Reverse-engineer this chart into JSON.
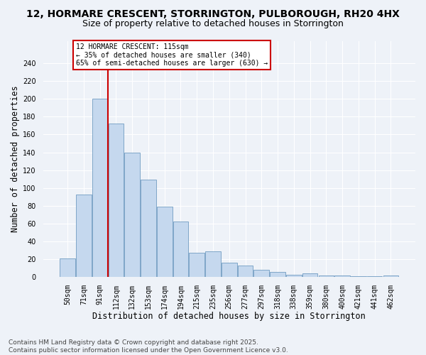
{
  "title1": "12, HORMARE CRESCENT, STORRINGTON, PULBOROUGH, RH20 4HX",
  "title2": "Size of property relative to detached houses in Storrington",
  "xlabel": "Distribution of detached houses by size in Storrington",
  "ylabel": "Number of detached properties",
  "categories": [
    "50sqm",
    "71sqm",
    "91sqm",
    "112sqm",
    "132sqm",
    "153sqm",
    "174sqm",
    "194sqm",
    "215sqm",
    "235sqm",
    "256sqm",
    "277sqm",
    "297sqm",
    "318sqm",
    "338sqm",
    "359sqm",
    "380sqm",
    "400sqm",
    "421sqm",
    "441sqm",
    "462sqm"
  ],
  "values": [
    21,
    93,
    200,
    172,
    140,
    109,
    79,
    62,
    27,
    29,
    16,
    13,
    8,
    6,
    3,
    4,
    2,
    2,
    1,
    1,
    2
  ],
  "bar_color": "#c5d8ee",
  "bar_edge_color": "#5b8db8",
  "red_line_index": 2.5,
  "red_line_label": "12 HORMARE CRESCENT: 115sqm",
  "annotation_line1": "← 35% of detached houses are smaller (340)",
  "annotation_line2": "65% of semi-detached houses are larger (630) →",
  "annotation_box_color": "#ffffff",
  "annotation_box_edge": "#cc0000",
  "red_line_color": "#cc0000",
  "ylim": [
    0,
    265
  ],
  "yticks": [
    0,
    20,
    40,
    60,
    80,
    100,
    120,
    140,
    160,
    180,
    200,
    220,
    240
  ],
  "footer1": "Contains HM Land Registry data © Crown copyright and database right 2025.",
  "footer2": "Contains public sector information licensed under the Open Government Licence v3.0.",
  "background_color": "#eef2f8",
  "grid_color": "#ffffff",
  "title_fontsize": 10,
  "subtitle_fontsize": 9,
  "tick_fontsize": 7,
  "label_fontsize": 8.5,
  "footer_fontsize": 6.5
}
